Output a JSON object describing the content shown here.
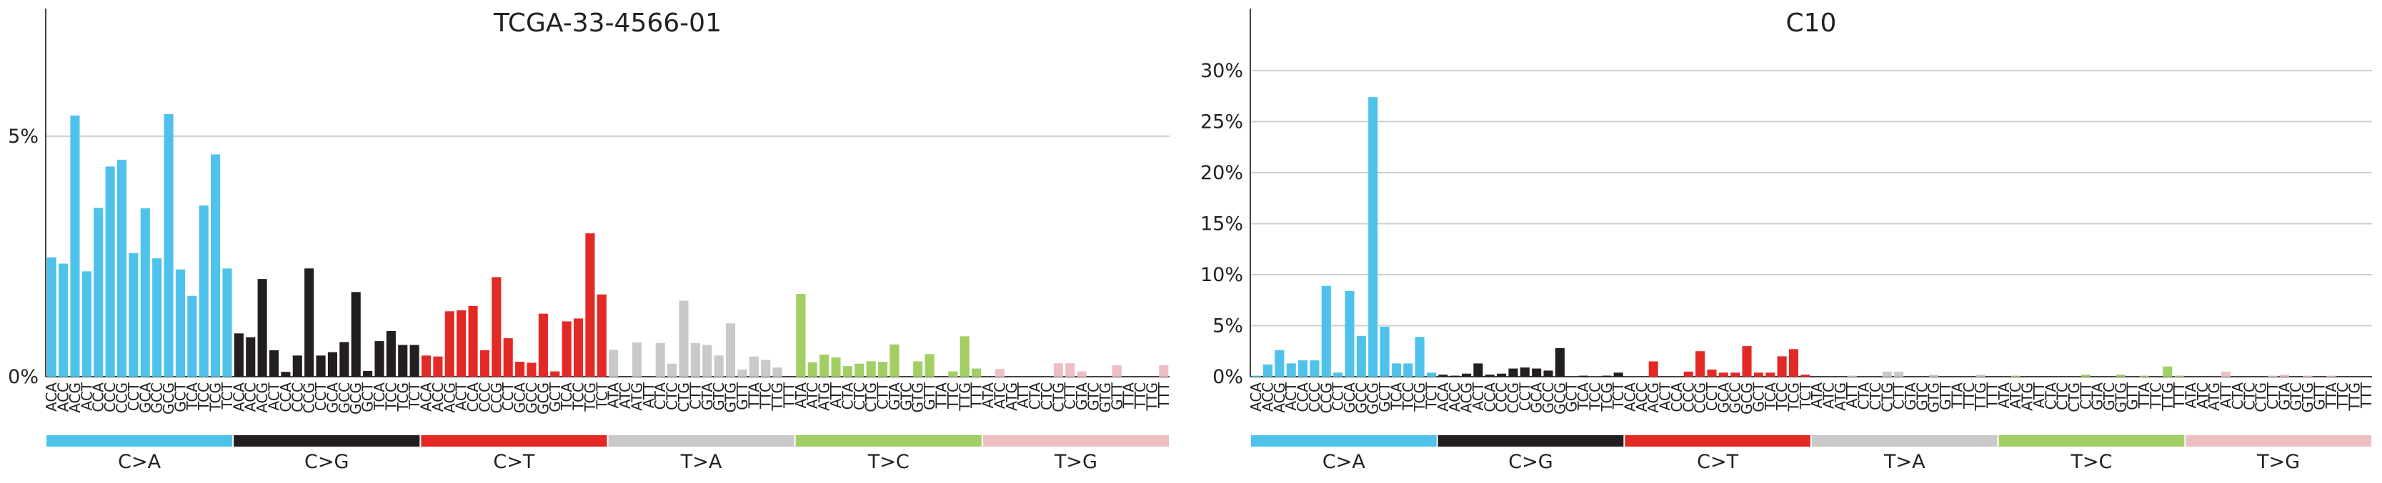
{
  "chart_data": [
    {
      "type": "bar",
      "title": "TCGA-33-4566-01",
      "xlabel": "",
      "ylabel": "",
      "ylim": [
        0,
        0.07
      ],
      "yticks": [
        0,
        0.05
      ],
      "ytick_labels": [
        "0%",
        "5%"
      ],
      "grid": "horizontal",
      "mutation_groups": [
        {
          "name": "C>A",
          "color": "#4fc2ec",
          "contexts": [
            "ACA",
            "ACC",
            "ACG",
            "ACT",
            "CCA",
            "CCC",
            "CCG",
            "CCT",
            "GCA",
            "GCC",
            "GCG",
            "GCT",
            "TCA",
            "TCC",
            "TCG",
            "TCT"
          ],
          "values": [
            0.0248,
            0.0235,
            0.0543,
            0.0219,
            0.0351,
            0.0437,
            0.0451,
            0.0257,
            0.035,
            0.0246,
            0.0546,
            0.0223,
            0.0168,
            0.0356,
            0.0462,
            0.0225
          ]
        },
        {
          "name": "C>G",
          "color": "#231f20",
          "contexts": [
            "ACA",
            "ACC",
            "ACG",
            "ACT",
            "CCA",
            "CCC",
            "CCG",
            "CCT",
            "GCA",
            "GCC",
            "GCG",
            "GCT",
            "TCA",
            "TCC",
            "TCG",
            "TCT"
          ],
          "values": [
            0.009,
            0.0082,
            0.0203,
            0.0055,
            0.001,
            0.0044,
            0.0225,
            0.0044,
            0.0051,
            0.0072,
            0.0176,
            0.0012,
            0.0074,
            0.0095,
            0.0066,
            0.0066
          ]
        },
        {
          "name": "C>T",
          "color": "#e32926",
          "contexts": [
            "ACA",
            "ACC",
            "ACG",
            "ACT",
            "CCA",
            "CCC",
            "CCG",
            "CCT",
            "GCA",
            "GCC",
            "GCG",
            "GCT",
            "TCA",
            "TCC",
            "TCG",
            "TCT"
          ],
          "values": [
            0.0044,
            0.0042,
            0.0136,
            0.0138,
            0.0147,
            0.0055,
            0.0207,
            0.008,
            0.0031,
            0.0029,
            0.0131,
            0.0011,
            0.0115,
            0.0121,
            0.0298,
            0.0171
          ]
        },
        {
          "name": "T>A",
          "color": "#c9c9c9",
          "contexts": [
            "ATA",
            "ATC",
            "ATG",
            "ATT",
            "CTA",
            "CTC",
            "CTG",
            "CTT",
            "GTA",
            "GTC",
            "GTG",
            "GTT",
            "TTA",
            "TTC",
            "TTG",
            "TTT"
          ],
          "values": [
            0.0056,
            0.0,
            0.0071,
            0.0,
            0.007,
            0.0027,
            0.0158,
            0.007,
            0.0066,
            0.0044,
            0.0111,
            0.0015,
            0.0042,
            0.0035,
            0.0019,
            0.0
          ]
        },
        {
          "name": "T>C",
          "color": "#a1cf64",
          "contexts": [
            "ATA",
            "ATC",
            "ATG",
            "ATT",
            "CTA",
            "CTC",
            "CTG",
            "CTT",
            "GTA",
            "GTC",
            "GTG",
            "GTT",
            "TTA",
            "TTC",
            "TTG",
            "TTT"
          ],
          "values": [
            0.0172,
            0.003,
            0.0046,
            0.004,
            0.0022,
            0.0027,
            0.0032,
            0.0031,
            0.0067,
            0.0,
            0.0032,
            0.0047,
            0.0,
            0.0011,
            0.0084,
            0.0017
          ]
        },
        {
          "name": "T>G",
          "color": "#edbfc2",
          "contexts": [
            "ATA",
            "ATC",
            "ATG",
            "ATT",
            "CTA",
            "CTC",
            "CTG",
            "CTT",
            "GTA",
            "GTC",
            "GTG",
            "GTT",
            "TTA",
            "TTC",
            "TTG",
            "TTT"
          ],
          "values": [
            0.0,
            0.0016,
            0.0,
            0.0,
            0.0,
            0.0,
            0.0028,
            0.0028,
            0.0011,
            0.0,
            0.0,
            0.0024,
            0.0,
            0.0,
            0.0,
            0.0024
          ]
        }
      ]
    },
    {
      "type": "bar",
      "title": "C10",
      "xlabel": "",
      "ylabel": "",
      "ylim": [
        0,
        0.33
      ],
      "yticks": [
        0,
        0.05,
        0.1,
        0.15,
        0.2,
        0.25,
        0.3
      ],
      "ytick_labels": [
        "0%",
        "5%",
        "10%",
        "15%",
        "20%",
        "25%",
        "30%"
      ],
      "grid": "horizontal",
      "mutation_groups": [
        {
          "name": "C>A",
          "color": "#4fc2ec",
          "contexts": [
            "ACA",
            "ACC",
            "ACG",
            "ACT",
            "CCA",
            "CCC",
            "CCG",
            "CCT",
            "GCA",
            "GCC",
            "GCG",
            "GCT",
            "TCA",
            "TCC",
            "TCG",
            "TCT"
          ],
          "values": [
            0.001,
            0.012,
            0.026,
            0.013,
            0.016,
            0.016,
            0.089,
            0.004,
            0.084,
            0.04,
            0.274,
            0.049,
            0.013,
            0.013,
            0.039,
            0.004
          ]
        },
        {
          "name": "C>G",
          "color": "#231f20",
          "contexts": [
            "ACA",
            "ACC",
            "ACG",
            "ACT",
            "CCA",
            "CCC",
            "CCG",
            "CCT",
            "GCA",
            "GCC",
            "GCG",
            "GCT",
            "TCA",
            "TCC",
            "TCG",
            "TCT"
          ],
          "values": [
            0.002,
            0.001,
            0.003,
            0.013,
            0.002,
            0.003,
            0.008,
            0.009,
            0.008,
            0.006,
            0.028,
            0.0,
            0.001,
            0.0,
            0.001,
            0.004
          ]
        },
        {
          "name": "C>T",
          "color": "#e32926",
          "contexts": [
            "ACA",
            "ACC",
            "ACG",
            "ACT",
            "CCA",
            "CCC",
            "CCG",
            "CCT",
            "GCA",
            "GCC",
            "GCG",
            "GCT",
            "TCA",
            "TCC",
            "TCG",
            "TCT"
          ],
          "values": [
            0.0,
            0.0,
            0.015,
            0.0,
            0.0,
            0.005,
            0.025,
            0.007,
            0.004,
            0.004,
            0.03,
            0.004,
            0.004,
            0.02,
            0.027,
            0.002
          ]
        },
        {
          "name": "T>A",
          "color": "#c9c9c9",
          "contexts": [
            "ATA",
            "ATC",
            "ATG",
            "ATT",
            "CTA",
            "CTC",
            "CTG",
            "CTT",
            "GTA",
            "GTC",
            "GTG",
            "GTT",
            "TTA",
            "TTC",
            "TTG",
            "TTT"
          ],
          "values": [
            0.0,
            0.0,
            0.0,
            0.001,
            0.0,
            0.0,
            0.005,
            0.005,
            0.0,
            0.0,
            0.002,
            0.0,
            0.0,
            0.0,
            0.002,
            0.0
          ]
        },
        {
          "name": "T>C",
          "color": "#a1cf64",
          "contexts": [
            "ATA",
            "ATC",
            "ATG",
            "ATT",
            "CTA",
            "CTC",
            "CTG",
            "CTT",
            "GTA",
            "GTC",
            "GTG",
            "GTT",
            "TTA",
            "TTC",
            "TTG",
            "TTT"
          ],
          "values": [
            0.0,
            0.001,
            0.0,
            0.0,
            0.0,
            0.0,
            0.0,
            0.002,
            0.0,
            0.0,
            0.002,
            0.0,
            0.001,
            0.0,
            0.01,
            0.001
          ]
        },
        {
          "name": "T>G",
          "color": "#edbfc2",
          "contexts": [
            "ATA",
            "ATC",
            "ATG",
            "ATT",
            "CTA",
            "CTC",
            "CTG",
            "CTT",
            "GTA",
            "GTC",
            "GTG",
            "GTT",
            "TTA",
            "TTC",
            "TTG",
            "TTT"
          ],
          "values": [
            0.0,
            0.0,
            0.0,
            0.005,
            0.0,
            0.0,
            0.0,
            0.001,
            0.002,
            0.0,
            0.001,
            0.0,
            0.001,
            0.0,
            0.0,
            0.0
          ]
        }
      ]
    }
  ]
}
